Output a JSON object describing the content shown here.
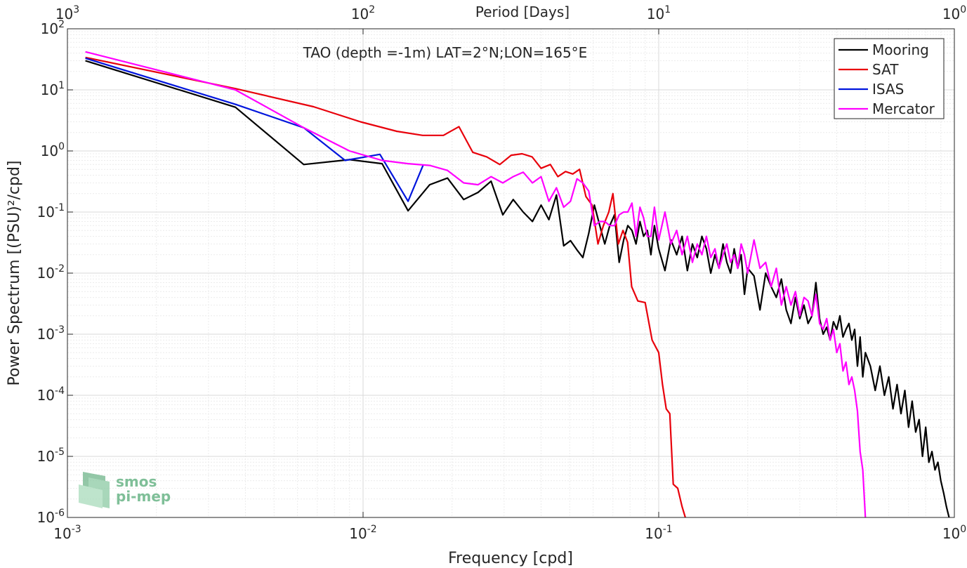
{
  "chart_data": {
    "type": "line",
    "title": "TAO (depth =-1m) LAT=2°N;LON=165°E",
    "xlabel": "Frequency [cpd]",
    "ylabel": "Power Spectrum [(PSU)²/cpd]",
    "top_axis_label": "Period [Days]",
    "x_scale": "log",
    "y_scale": "log",
    "xlim": [
      0.001,
      1
    ],
    "ylim": [
      1e-06,
      100
    ],
    "grid": true,
    "legend_position": "top-right",
    "x_ticks": [
      {
        "value": 0.001,
        "base": "10",
        "exp": "-3"
      },
      {
        "value": 0.01,
        "base": "10",
        "exp": "-2"
      },
      {
        "value": 0.1,
        "base": "10",
        "exp": "-1"
      },
      {
        "value": 1,
        "base": "10",
        "exp": "0"
      }
    ],
    "top_ticks": [
      {
        "value": 0.001,
        "base": "10",
        "exp": "3"
      },
      {
        "value": 0.01,
        "base": "10",
        "exp": "2"
      },
      {
        "value": 0.1,
        "base": "10",
        "exp": "1"
      },
      {
        "value": 1,
        "base": "10",
        "exp": "0"
      }
    ],
    "y_ticks": [
      {
        "value": 1e-06,
        "base": "10",
        "exp": "-6"
      },
      {
        "value": 1e-05,
        "base": "10",
        "exp": "-5"
      },
      {
        "value": 0.0001,
        "base": "10",
        "exp": "-4"
      },
      {
        "value": 0.001,
        "base": "10",
        "exp": "-3"
      },
      {
        "value": 0.01,
        "base": "10",
        "exp": "-2"
      },
      {
        "value": 0.1,
        "base": "10",
        "exp": "-1"
      },
      {
        "value": 1,
        "base": "10",
        "exp": "0"
      },
      {
        "value": 10,
        "base": "10",
        "exp": "1"
      },
      {
        "value": 100,
        "base": "10",
        "exp": "2"
      }
    ],
    "series": [
      {
        "name": "Mooring",
        "color": "#000000",
        "points": [
          [
            0.00115,
            30
          ],
          [
            0.0037,
            5.2
          ],
          [
            0.0063,
            0.6
          ],
          [
            0.009,
            0.72
          ],
          [
            0.0116,
            0.62
          ],
          [
            0.0142,
            0.105
          ],
          [
            0.0168,
            0.28
          ],
          [
            0.0193,
            0.36
          ],
          [
            0.0219,
            0.16
          ],
          [
            0.0245,
            0.21
          ],
          [
            0.0271,
            0.32
          ],
          [
            0.0297,
            0.09
          ],
          [
            0.0322,
            0.16
          ],
          [
            0.0348,
            0.1
          ],
          [
            0.0374,
            0.07
          ],
          [
            0.04,
            0.13
          ],
          [
            0.0425,
            0.075
          ],
          [
            0.0451,
            0.19
          ],
          [
            0.0477,
            0.028
          ],
          [
            0.0503,
            0.034
          ],
          [
            0.0529,
            0.024
          ],
          [
            0.0554,
            0.018
          ],
          [
            0.058,
            0.045
          ],
          [
            0.0606,
            0.13
          ],
          [
            0.0632,
            0.06
          ],
          [
            0.0657,
            0.03
          ],
          [
            0.0683,
            0.06
          ],
          [
            0.0709,
            0.09
          ],
          [
            0.0735,
            0.015
          ],
          [
            0.0761,
            0.035
          ],
          [
            0.0786,
            0.06
          ],
          [
            0.0812,
            0.05
          ],
          [
            0.0838,
            0.03
          ],
          [
            0.0864,
            0.07
          ],
          [
            0.0889,
            0.04
          ],
          [
            0.0915,
            0.05
          ],
          [
            0.0941,
            0.02
          ],
          [
            0.0967,
            0.06
          ],
          [
            0.1,
            0.025
          ],
          [
            0.105,
            0.011
          ],
          [
            0.11,
            0.035
          ],
          [
            0.115,
            0.02
          ],
          [
            0.12,
            0.04
          ],
          [
            0.125,
            0.011
          ],
          [
            0.13,
            0.03
          ],
          [
            0.135,
            0.018
          ],
          [
            0.14,
            0.04
          ],
          [
            0.145,
            0.025
          ],
          [
            0.15,
            0.01
          ],
          [
            0.155,
            0.02
          ],
          [
            0.16,
            0.012
          ],
          [
            0.165,
            0.03
          ],
          [
            0.17,
            0.015
          ],
          [
            0.175,
            0.01
          ],
          [
            0.18,
            0.025
          ],
          [
            0.185,
            0.012
          ],
          [
            0.19,
            0.02
          ],
          [
            0.195,
            0.0045
          ],
          [
            0.2,
            0.012
          ],
          [
            0.21,
            0.009
          ],
          [
            0.22,
            0.0025
          ],
          [
            0.23,
            0.01
          ],
          [
            0.24,
            0.006
          ],
          [
            0.25,
            0.004
          ],
          [
            0.26,
            0.008
          ],
          [
            0.27,
            0.0025
          ],
          [
            0.28,
            0.0015
          ],
          [
            0.29,
            0.004
          ],
          [
            0.3,
            0.0018
          ],
          [
            0.31,
            0.003
          ],
          [
            0.32,
            0.0015
          ],
          [
            0.33,
            0.002
          ],
          [
            0.34,
            0.007
          ],
          [
            0.35,
            0.0018
          ],
          [
            0.36,
            0.001
          ],
          [
            0.37,
            0.0013
          ],
          [
            0.38,
            0.0008
          ],
          [
            0.39,
            0.0016
          ],
          [
            0.4,
            0.0012
          ],
          [
            0.41,
            0.002
          ],
          [
            0.42,
            0.0009
          ],
          [
            0.43,
            0.0012
          ],
          [
            0.44,
            0.0015
          ],
          [
            0.45,
            0.0008
          ],
          [
            0.46,
            0.0012
          ],
          [
            0.47,
            0.0003
          ],
          [
            0.48,
            0.0009
          ],
          [
            0.49,
            0.0002
          ],
          [
            0.5,
            0.0005
          ],
          [
            0.52,
            0.0003
          ],
          [
            0.54,
            0.00012
          ],
          [
            0.56,
            0.0003
          ],
          [
            0.58,
            0.0001
          ],
          [
            0.6,
            0.0002
          ],
          [
            0.62,
            6e-05
          ],
          [
            0.64,
            0.00015
          ],
          [
            0.66,
            5e-05
          ],
          [
            0.68,
            0.00012
          ],
          [
            0.7,
            3e-05
          ],
          [
            0.72,
            8e-05
          ],
          [
            0.74,
            2.5e-05
          ],
          [
            0.76,
            4e-05
          ],
          [
            0.78,
            1e-05
          ],
          [
            0.8,
            3e-05
          ],
          [
            0.82,
            8e-06
          ],
          [
            0.84,
            1.2e-05
          ],
          [
            0.86,
            6e-06
          ],
          [
            0.88,
            8e-06
          ],
          [
            0.9,
            4e-06
          ],
          [
            0.92,
            2.5e-06
          ],
          [
            0.94,
            1.5e-06
          ],
          [
            0.96,
            1e-06
          ]
        ]
      },
      {
        "name": "SAT",
        "color": "#e8000b",
        "points": [
          [
            0.00115,
            34
          ],
          [
            0.0037,
            10.5
          ],
          [
            0.0068,
            5.3
          ],
          [
            0.0098,
            3
          ],
          [
            0.013,
            2.1
          ],
          [
            0.0159,
            1.8
          ],
          [
            0.0187,
            1.8
          ],
          [
            0.0211,
            2.5
          ],
          [
            0.0235,
            0.95
          ],
          [
            0.0262,
            0.8
          ],
          [
            0.029,
            0.6
          ],
          [
            0.0317,
            0.85
          ],
          [
            0.0345,
            0.9
          ],
          [
            0.0373,
            0.8
          ],
          [
            0.04,
            0.52
          ],
          [
            0.043,
            0.6
          ],
          [
            0.0456,
            0.38
          ],
          [
            0.0484,
            0.46
          ],
          [
            0.0512,
            0.42
          ],
          [
            0.054,
            0.5
          ],
          [
            0.0567,
            0.18
          ],
          [
            0.0595,
            0.13
          ],
          [
            0.0623,
            0.03
          ],
          [
            0.065,
            0.06
          ],
          [
            0.0678,
            0.1
          ],
          [
            0.07,
            0.2
          ],
          [
            0.073,
            0.03
          ],
          [
            0.0757,
            0.05
          ],
          [
            0.0785,
            0.032
          ],
          [
            0.081,
            0.006
          ],
          [
            0.085,
            0.0035
          ],
          [
            0.09,
            0.0033
          ],
          [
            0.095,
            0.0008
          ],
          [
            0.1,
            0.0005
          ],
          [
            0.103,
            0.00015
          ],
          [
            0.106,
            6e-05
          ],
          [
            0.109,
            5e-05
          ],
          [
            0.112,
            3.5e-06
          ],
          [
            0.116,
            3e-06
          ],
          [
            0.12,
            1.5e-06
          ],
          [
            0.123,
            1e-06
          ]
        ]
      },
      {
        "name": "ISAS",
        "color": "#0015dd",
        "points": [
          [
            0.00115,
            33
          ],
          [
            0.0037,
            5.8
          ],
          [
            0.0063,
            2.4
          ],
          [
            0.0087,
            0.7
          ],
          [
            0.0114,
            0.88
          ],
          [
            0.0142,
            0.15
          ],
          [
            0.016,
            0.6
          ]
        ]
      },
      {
        "name": "Mercator",
        "color": "#ff00ff",
        "points": [
          [
            0.00115,
            42
          ],
          [
            0.0037,
            10
          ],
          [
            0.0063,
            2.4
          ],
          [
            0.009,
            1
          ],
          [
            0.0116,
            0.7
          ],
          [
            0.0142,
            0.62
          ],
          [
            0.0168,
            0.58
          ],
          [
            0.0193,
            0.48
          ],
          [
            0.0219,
            0.3
          ],
          [
            0.0245,
            0.28
          ],
          [
            0.0271,
            0.38
          ],
          [
            0.0297,
            0.3
          ],
          [
            0.0322,
            0.38
          ],
          [
            0.0348,
            0.45
          ],
          [
            0.0374,
            0.3
          ],
          [
            0.04,
            0.38
          ],
          [
            0.0425,
            0.15
          ],
          [
            0.0451,
            0.25
          ],
          [
            0.0477,
            0.12
          ],
          [
            0.0503,
            0.15
          ],
          [
            0.0529,
            0.35
          ],
          [
            0.0554,
            0.3
          ],
          [
            0.058,
            0.22
          ],
          [
            0.0606,
            0.06
          ],
          [
            0.0632,
            0.07
          ],
          [
            0.0657,
            0.07
          ],
          [
            0.0683,
            0.06
          ],
          [
            0.0709,
            0.06
          ],
          [
            0.0735,
            0.09
          ],
          [
            0.0761,
            0.1
          ],
          [
            0.0786,
            0.1
          ],
          [
            0.0812,
            0.14
          ],
          [
            0.0838,
            0.04
          ],
          [
            0.0864,
            0.12
          ],
          [
            0.0889,
            0.08
          ],
          [
            0.0915,
            0.04
          ],
          [
            0.0941,
            0.04
          ],
          [
            0.0967,
            0.12
          ],
          [
            0.1,
            0.035
          ],
          [
            0.105,
            0.1
          ],
          [
            0.11,
            0.03
          ],
          [
            0.115,
            0.05
          ],
          [
            0.12,
            0.02
          ],
          [
            0.125,
            0.04
          ],
          [
            0.13,
            0.015
          ],
          [
            0.135,
            0.03
          ],
          [
            0.14,
            0.02
          ],
          [
            0.145,
            0.04
          ],
          [
            0.15,
            0.018
          ],
          [
            0.155,
            0.025
          ],
          [
            0.16,
            0.012
          ],
          [
            0.165,
            0.02
          ],
          [
            0.17,
            0.03
          ],
          [
            0.175,
            0.015
          ],
          [
            0.18,
            0.02
          ],
          [
            0.185,
            0.012
          ],
          [
            0.19,
            0.03
          ],
          [
            0.195,
            0.02
          ],
          [
            0.2,
            0.01
          ],
          [
            0.21,
            0.035
          ],
          [
            0.22,
            0.012
          ],
          [
            0.23,
            0.015
          ],
          [
            0.24,
            0.006
          ],
          [
            0.25,
            0.012
          ],
          [
            0.26,
            0.003
          ],
          [
            0.27,
            0.006
          ],
          [
            0.28,
            0.003
          ],
          [
            0.29,
            0.005
          ],
          [
            0.3,
            0.002
          ],
          [
            0.31,
            0.004
          ],
          [
            0.32,
            0.0035
          ],
          [
            0.33,
            0.002
          ],
          [
            0.34,
            0.0045
          ],
          [
            0.35,
            0.0015
          ],
          [
            0.36,
            0.0012
          ],
          [
            0.37,
            0.0018
          ],
          [
            0.38,
            0.0008
          ],
          [
            0.39,
            0.0012
          ],
          [
            0.4,
            0.0005
          ],
          [
            0.41,
            0.0007
          ],
          [
            0.42,
            0.00025
          ],
          [
            0.43,
            0.00035
          ],
          [
            0.44,
            0.00015
          ],
          [
            0.45,
            0.0002
          ],
          [
            0.46,
            0.00012
          ],
          [
            0.47,
            5.5e-05
          ],
          [
            0.48,
            1.2e-05
          ],
          [
            0.49,
            6e-06
          ],
          [
            0.5,
            1e-06
          ]
        ]
      }
    ]
  },
  "watermark": {
    "line1": "smos",
    "line2": "pi-mep",
    "color": "#7fbf98"
  }
}
